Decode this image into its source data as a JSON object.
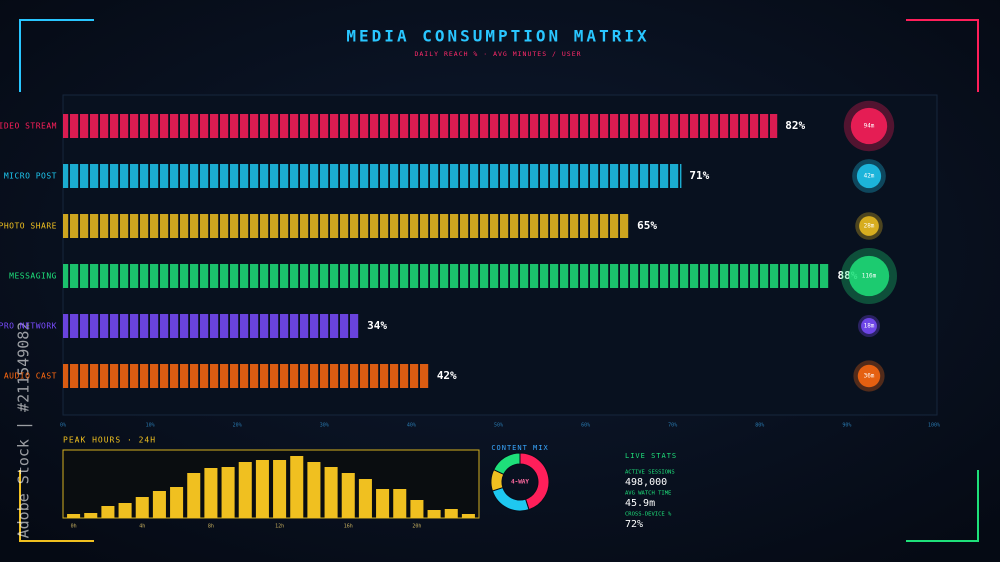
{
  "header": {
    "watermark": "Adobe Stock | #211549082"
  },
  "chart_data": [
    {
      "type": "hbar",
      "title": "MEDIA CONSUMPTION MATRIX",
      "subtitle": "DAILY REACH % · AVG MINUTES / USER",
      "categories": [
        "VIDEO STREAM",
        "MICRO POST",
        "PHOTO SHARE",
        "MESSAGING",
        "PRO NETWORK",
        "AUDIO CAST"
      ],
      "values": [
        82,
        71,
        65,
        88,
        34,
        42
      ],
      "value_labels": [
        "82%",
        "71%",
        "65%",
        "88%",
        "34%",
        "42%"
      ],
      "colors": [
        "#ff1f5a",
        "#1ec8f0",
        "#f0c020",
        "#1ee07a",
        "#7a4cff",
        "#ff6a10"
      ],
      "xlim": [
        0,
        100
      ],
      "xticks": [
        {
          "value": 0,
          "label": "0%"
        },
        {
          "value": 10,
          "label": "10%"
        },
        {
          "value": 20,
          "label": "20%"
        },
        {
          "value": 30,
          "label": "30%"
        },
        {
          "value": 40,
          "label": "40%"
        },
        {
          "value": 50,
          "label": "50%"
        },
        {
          "value": 60,
          "label": "60%"
        },
        {
          "value": 70,
          "label": "70%"
        },
        {
          "value": 80,
          "label": "80%"
        },
        {
          "value": 90,
          "label": "90%"
        },
        {
          "value": 100,
          "label": "100%"
        }
      ]
    },
    {
      "type": "bubble",
      "values": [
        94,
        42,
        28,
        116,
        18,
        36
      ],
      "value_labels": [
        "94m",
        "42m",
        "28m",
        "116m",
        "18m",
        "36m"
      ],
      "colors": [
        "#ff1f5a",
        "#1ec8f0",
        "#f0c020",
        "#1ee07a",
        "#7a4cff",
        "#ff6a10"
      ]
    },
    {
      "type": "column",
      "title": "PEAK HOURS · 24H",
      "categories": [
        "0h",
        null,
        null,
        null,
        "4h",
        null,
        null,
        null,
        "8h",
        null,
        null,
        null,
        "12h",
        null,
        null,
        null,
        "16h",
        null,
        null,
        null,
        "20h",
        null,
        null,
        null
      ],
      "values": [
        4,
        5,
        12,
        15,
        21,
        27,
        31,
        45,
        50,
        51,
        56,
        58,
        58,
        62,
        56,
        51,
        45,
        39,
        29,
        29,
        18,
        8,
        9,
        4
      ],
      "ylim": [
        0,
        66
      ],
      "color": "#f0c020"
    },
    {
      "type": "donut",
      "title": "CONTENT MIX",
      "center_label": "4-WAY",
      "values": [
        45,
        25,
        12,
        18
      ],
      "colors": [
        "#ff1f5a",
        "#1ec8f0",
        "#f0c020",
        "#1ee07a"
      ]
    }
  ],
  "live_stats": {
    "title": "LIVE STATS",
    "items": [
      {
        "label": "ACTIVE SESSIONS",
        "value": "498,000"
      },
      {
        "label": "AVG WATCH TIME",
        "value": "45.9m"
      },
      {
        "label": "CROSS-DEVICE %",
        "value": "72%"
      }
    ]
  }
}
